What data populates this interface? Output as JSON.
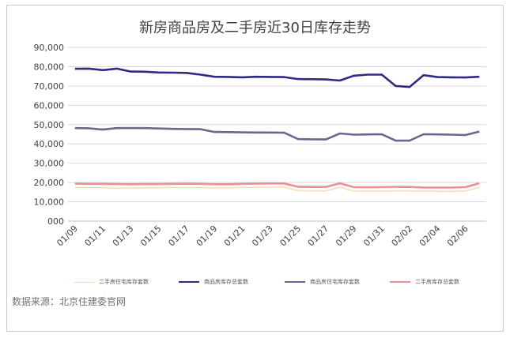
{
  "chart_data": {
    "type": "line",
    "title": "新房商品房及二手房近30日库存走势",
    "xlabel": "",
    "ylabel": "",
    "ylim": [
      0,
      90000
    ],
    "yticks": [
      "000",
      "10,000",
      "20,000",
      "30,000",
      "40,000",
      "50,000",
      "60,000",
      "70,000",
      "80,000",
      "90,000"
    ],
    "ytick_values": [
      0,
      10000,
      20000,
      30000,
      40000,
      50000,
      60000,
      70000,
      80000,
      90000
    ],
    "x": [
      "01/09",
      "01/10",
      "01/11",
      "01/12",
      "01/13",
      "01/14",
      "01/15",
      "01/16",
      "01/17",
      "01/18",
      "01/19",
      "01/20",
      "01/21",
      "01/22",
      "01/23",
      "01/24",
      "01/25",
      "01/26",
      "01/27",
      "01/28",
      "01/29",
      "01/30",
      "01/31",
      "02/01",
      "02/02",
      "02/03",
      "02/04",
      "02/05",
      "02/06",
      "02/07"
    ],
    "xtick_labels": [
      "01/09",
      "01/11",
      "01/13",
      "01/15",
      "01/17",
      "01/19",
      "01/21",
      "01/23",
      "01/25",
      "01/27",
      "01/29",
      "01/31",
      "02/02",
      "02/04",
      "02/06"
    ],
    "grid": true,
    "legend_position": "bottom",
    "series": [
      {
        "name": "二手房住宅库存套数",
        "color": "#f5ddb0",
        "values": [
          17500,
          17300,
          17300,
          17000,
          17100,
          17200,
          17300,
          17400,
          17400,
          17400,
          17200,
          17200,
          17500,
          17500,
          17600,
          17600,
          15800,
          15700,
          15700,
          17500,
          15600,
          15500,
          15600,
          15700,
          15700,
          15500,
          15500,
          15400,
          15600,
          17500
        ]
      },
      {
        "name": "商品房库存总套数",
        "color": "#2e2a86",
        "values": [
          78900,
          79000,
          78200,
          79000,
          77500,
          77400,
          77000,
          76900,
          76800,
          75900,
          74800,
          74700,
          74500,
          74800,
          74700,
          74600,
          73600,
          73500,
          73400,
          72800,
          75300,
          75900,
          75900,
          70000,
          69500,
          75600,
          74600,
          74500,
          74400,
          74800
        ]
      },
      {
        "name": "商品房住宅库存套数",
        "color": "#6b6690",
        "values": [
          48200,
          48100,
          47400,
          48200,
          48200,
          48200,
          48000,
          47800,
          47700,
          47600,
          46200,
          46100,
          46000,
          45900,
          45900,
          45800,
          42500,
          42400,
          42300,
          45400,
          44800,
          44900,
          45000,
          41700,
          41700,
          45000,
          44900,
          44800,
          44600,
          46400
        ]
      },
      {
        "name": "二手房库存总套数",
        "color": "#e98f97",
        "values": [
          19400,
          19300,
          19300,
          19200,
          19100,
          19200,
          19200,
          19300,
          19400,
          19300,
          19100,
          19100,
          19300,
          19400,
          19500,
          19500,
          17800,
          17700,
          17700,
          19600,
          17600,
          17500,
          17600,
          17700,
          17700,
          17400,
          17400,
          17400,
          17600,
          19600
        ]
      }
    ]
  },
  "source_text": "数据来源：北京住建委官网"
}
